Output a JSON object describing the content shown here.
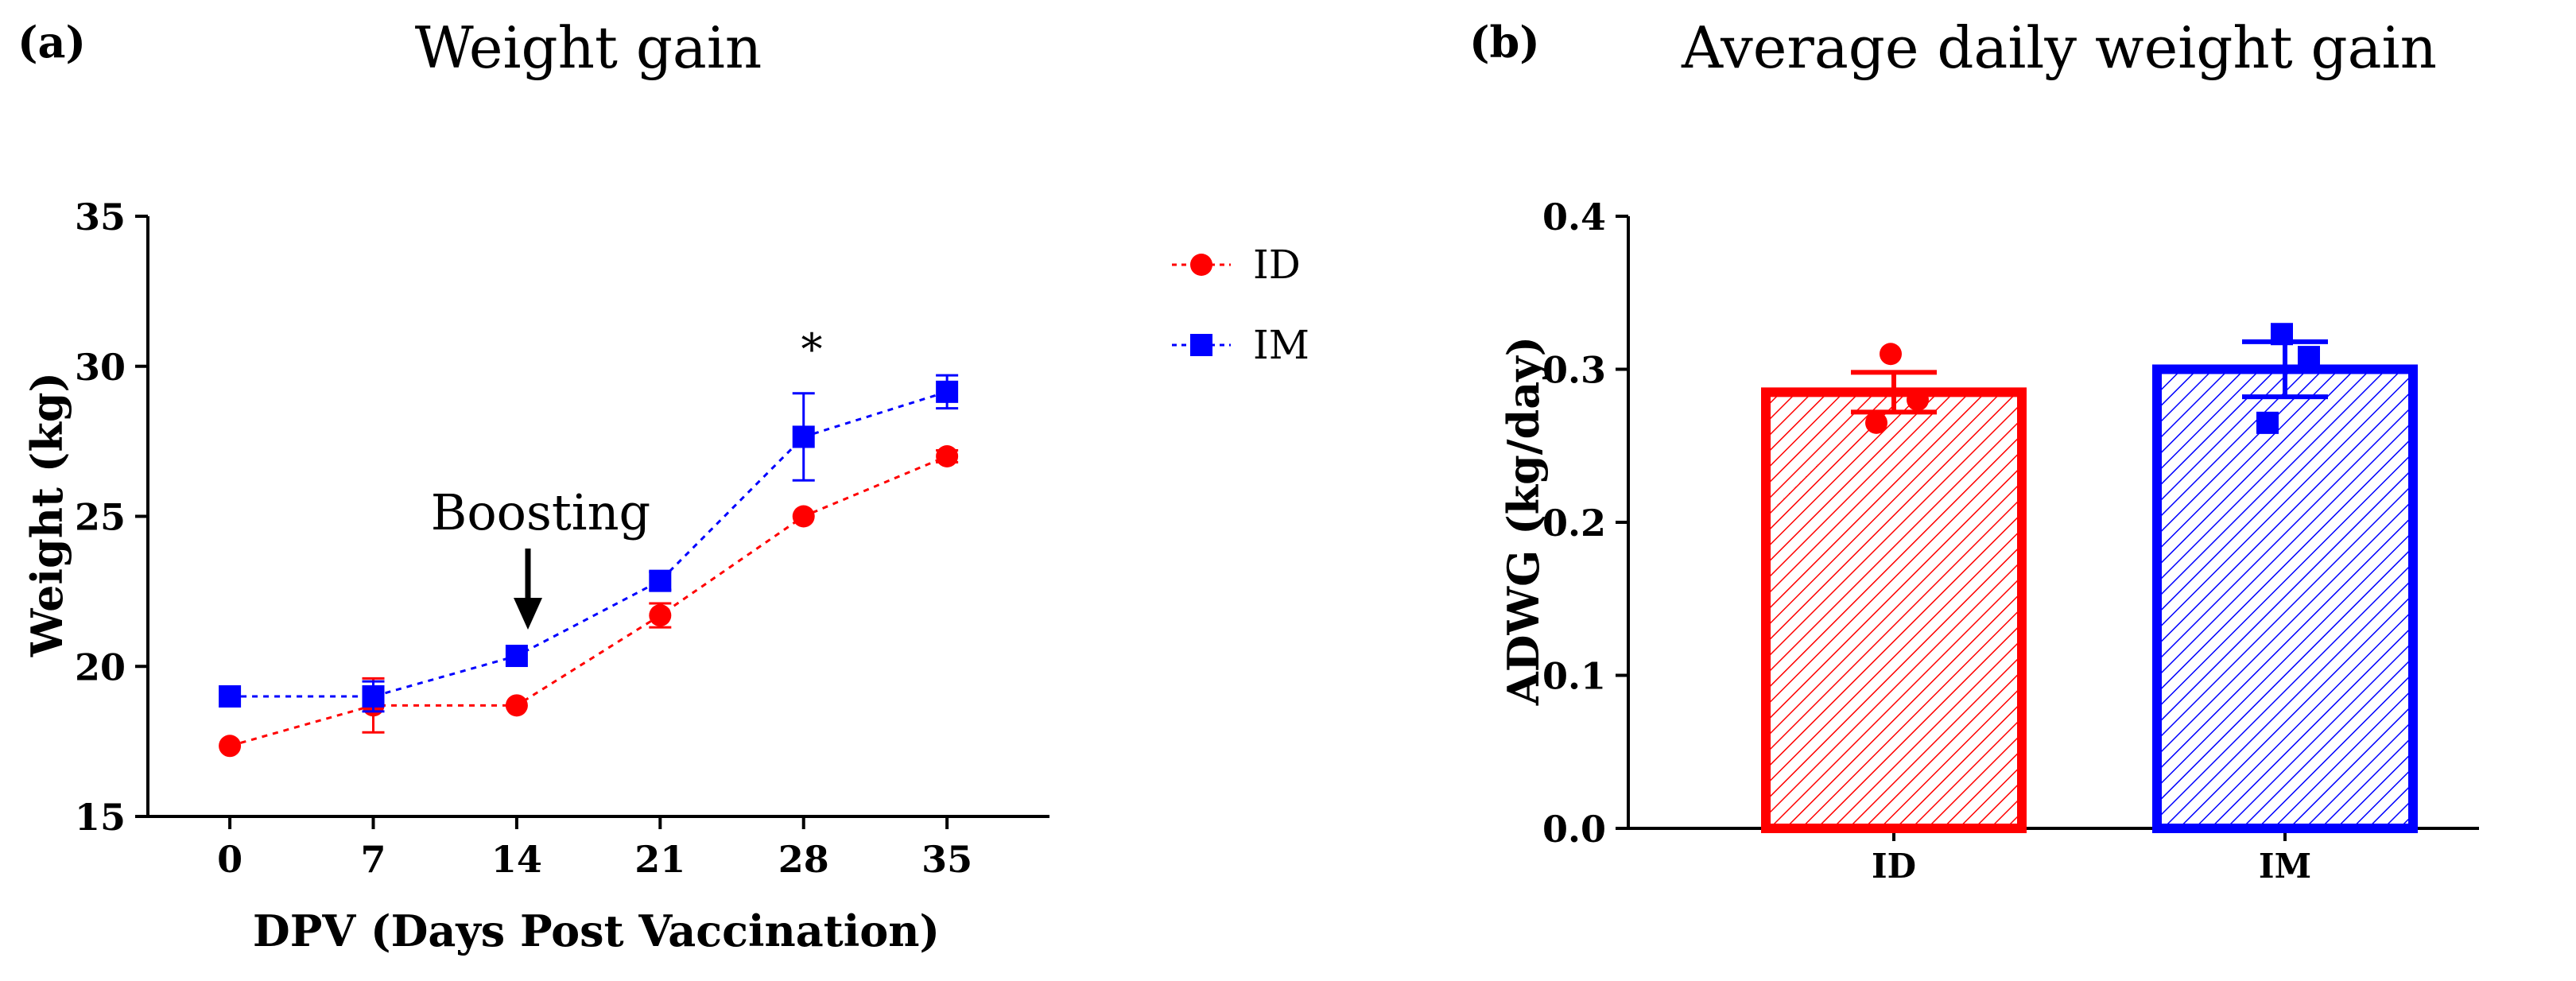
{
  "chart_data": [
    {
      "panel_label": "(a)",
      "type": "line",
      "title": "Weight gain",
      "xlabel": "DPV (Days Post Vaccination)",
      "ylabel": "Weight (kg)",
      "x": [
        0,
        7,
        14,
        21,
        28,
        35
      ],
      "x_ticks": [
        "0",
        "7",
        "14",
        "21",
        "28",
        "35"
      ],
      "xlim": [
        -4,
        40
      ],
      "ylim": [
        15,
        35
      ],
      "y_ticks": [
        "15",
        "20",
        "25",
        "30",
        "35"
      ],
      "series": [
        {
          "name": "ID",
          "color": "#ff0000",
          "marker": "circle",
          "values": [
            17.35,
            18.7,
            18.7,
            21.7,
            25.0,
            27.0
          ],
          "errors": [
            0.0,
            0.9,
            0.0,
            0.4,
            0.0,
            0.2
          ]
        },
        {
          "name": "IM",
          "color": "#0000ff",
          "marker": "square",
          "values": [
            19.0,
            19.0,
            20.35,
            22.85,
            27.65,
            29.15
          ],
          "errors": [
            0.0,
            0.5,
            0.0,
            0.3,
            1.45,
            0.55
          ]
        }
      ],
      "annotations": [
        {
          "text": "Boosting",
          "x": 14,
          "type": "arrow"
        },
        {
          "text": "*",
          "x": 28
        }
      ],
      "legend_position": "top-right"
    },
    {
      "panel_label": "(b)",
      "type": "bar",
      "title": "Average daily weight gain",
      "xlabel": "",
      "ylabel": "ADWG (kg/day)",
      "categories": [
        "ID",
        "IM"
      ],
      "values": [
        0.285,
        0.3
      ],
      "errors": [
        0.013,
        0.018
      ],
      "colors": [
        "#ff0000",
        "#0000ff"
      ],
      "points": [
        [
          0.31,
          0.28,
          0.265
        ],
        [
          0.323,
          0.308,
          0.265
        ]
      ],
      "ylim": [
        0,
        0.4
      ],
      "y_ticks": [
        "0.0",
        "0.1",
        "0.2",
        "0.3",
        "0.4"
      ]
    }
  ]
}
